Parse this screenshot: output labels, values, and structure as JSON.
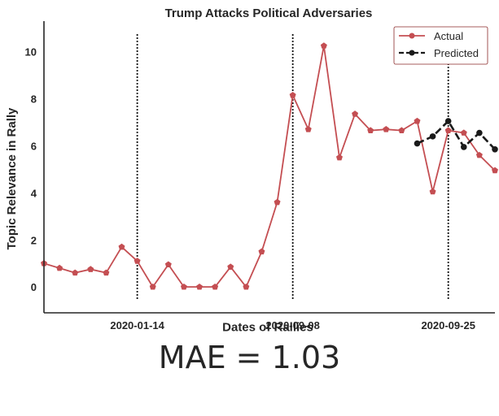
{
  "chart_data": {
    "type": "line",
    "title": "Trump Attacks Political Adversaries",
    "xlabel": "Dates of Rallies",
    "ylabel": "Topic Relevance in Rally",
    "ylim": [
      -1.1,
      11.3
    ],
    "yticks": [
      0,
      2,
      4,
      6,
      8,
      10
    ],
    "xticks": [
      {
        "index": 6,
        "label": "2020-01-14"
      },
      {
        "index": 16,
        "label": "2020-09-08"
      },
      {
        "index": 26,
        "label": "2020-09-25"
      }
    ],
    "vlines": [
      6,
      16,
      26
    ],
    "legend_position": "top-right",
    "grid": false,
    "series": [
      {
        "name": "Actual",
        "color": "#c44e52",
        "style": "solid",
        "marker": "pentagon",
        "x": [
          0,
          1,
          2,
          3,
          4,
          5,
          6,
          7,
          8,
          9,
          10,
          11,
          12,
          13,
          14,
          15,
          16,
          17,
          18,
          19,
          20,
          21,
          22,
          23,
          24,
          25,
          26,
          27,
          28,
          29
        ],
        "values": [
          1.0,
          0.8,
          0.6,
          0.75,
          0.6,
          1.7,
          1.1,
          0.0,
          0.95,
          0.0,
          0.0,
          0.0,
          0.85,
          0.0,
          1.5,
          3.6,
          8.15,
          6.7,
          10.25,
          5.5,
          7.35,
          6.65,
          6.7,
          6.65,
          7.05,
          4.05,
          6.65,
          6.55,
          5.6,
          4.95
        ]
      },
      {
        "name": "Predicted",
        "color": "#1a1a1a",
        "style": "dashed",
        "marker": "circle",
        "x": [
          24,
          25,
          26,
          27,
          28,
          29
        ],
        "values": [
          6.1,
          6.4,
          7.05,
          5.95,
          6.55,
          5.85
        ]
      }
    ]
  },
  "mae_label": "MAE = 1.03"
}
